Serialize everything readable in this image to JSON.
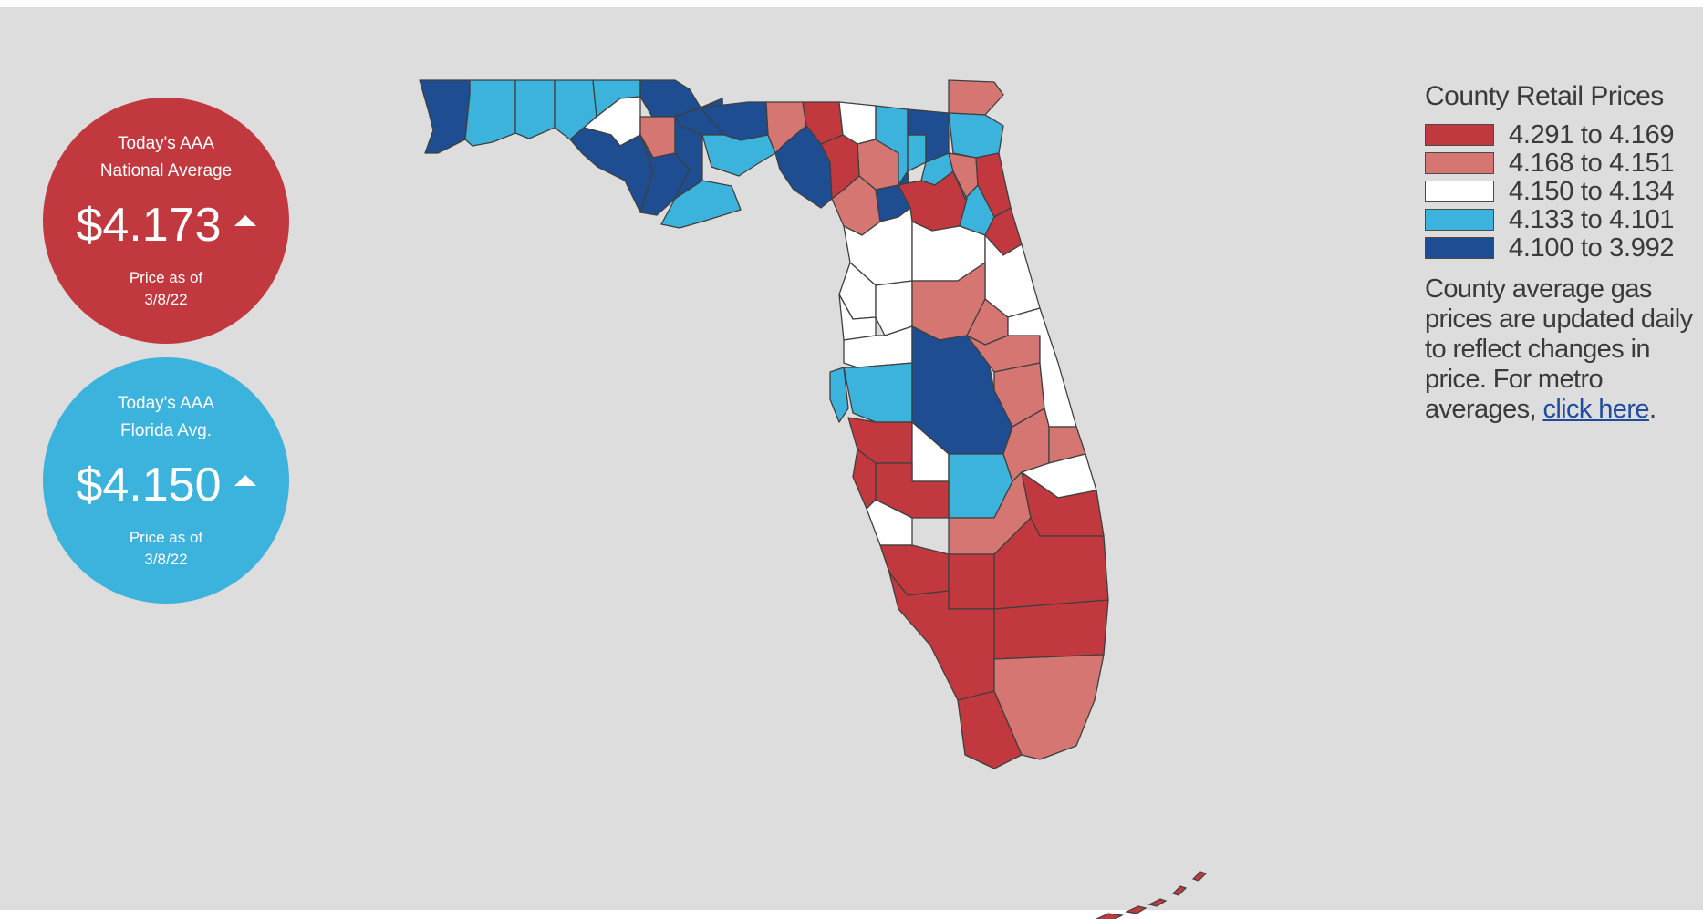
{
  "national": {
    "label_line1": "Today's AAA",
    "label_line2": "National Average",
    "price": "$4.173",
    "trend": "up",
    "asof_label": "Price as of",
    "date": "3/8/22",
    "color": "#c1393e"
  },
  "florida": {
    "label_line1": "Today's AAA",
    "label_line2": "Florida Avg.",
    "price": "$4.150",
    "trend": "up",
    "asof_label": "Price as of",
    "date": "3/8/22",
    "color": "#3bb3dc"
  },
  "legend": {
    "title": "County Retail Prices",
    "bins": [
      {
        "range": "4.291 to 4.169",
        "color": "#c1393e"
      },
      {
        "range": "4.168 to 4.151",
        "color": "#d57673"
      },
      {
        "range": "4.150 to 4.134",
        "color": "#ffffff"
      },
      {
        "range": "4.133 to 4.101",
        "color": "#3bb3dc"
      },
      {
        "range": "4.100 to 3.992",
        "color": "#1e4d91"
      }
    ],
    "note_text": "County average gas prices are updated daily to reflect changes in price. For metro averages,",
    "link_text": "click here",
    "note_end": "."
  },
  "map": {
    "region": "Florida",
    "counties": [
      {
        "name": "Escambia",
        "bin": 4
      },
      {
        "name": "Santa Rosa",
        "bin": 3
      },
      {
        "name": "Okaloosa",
        "bin": 3
      },
      {
        "name": "Walton",
        "bin": 3
      },
      {
        "name": "Holmes",
        "bin": 3
      },
      {
        "name": "Washington",
        "bin": 2
      },
      {
        "name": "Bay",
        "bin": 4
      },
      {
        "name": "Jackson",
        "bin": 4
      },
      {
        "name": "Calhoun",
        "bin": 1
      },
      {
        "name": "Gulf",
        "bin": 4
      },
      {
        "name": "Gadsden",
        "bin": 4
      },
      {
        "name": "Liberty",
        "bin": 4
      },
      {
        "name": "Franklin",
        "bin": 3
      },
      {
        "name": "Leon",
        "bin": 4
      },
      {
        "name": "Wakulla",
        "bin": 3
      },
      {
        "name": "Jefferson",
        "bin": 1
      },
      {
        "name": "Madison",
        "bin": 0
      },
      {
        "name": "Taylor",
        "bin": 4
      },
      {
        "name": "Hamilton",
        "bin": 2
      },
      {
        "name": "Suwannee",
        "bin": 1
      },
      {
        "name": "Lafayette",
        "bin": 0
      },
      {
        "name": "Dixie",
        "bin": 1
      },
      {
        "name": "Columbia",
        "bin": 3
      },
      {
        "name": "Gilchrist",
        "bin": 4
      },
      {
        "name": "Union",
        "bin": 3
      },
      {
        "name": "Baker",
        "bin": 4
      },
      {
        "name": "Bradford",
        "bin": 3
      },
      {
        "name": "Alachua",
        "bin": 0
      },
      {
        "name": "Nassau",
        "bin": 1
      },
      {
        "name": "Duval",
        "bin": 3
      },
      {
        "name": "Clay",
        "bin": 1
      },
      {
        "name": "St. Johns",
        "bin": 0
      },
      {
        "name": "Putnam",
        "bin": 3
      },
      {
        "name": "Flagler",
        "bin": 0
      },
      {
        "name": "Levy",
        "bin": 2
      },
      {
        "name": "Marion",
        "bin": 2
      },
      {
        "name": "Volusia",
        "bin": 2
      },
      {
        "name": "Citrus",
        "bin": 2
      },
      {
        "name": "Sumter",
        "bin": 2
      },
      {
        "name": "Lake",
        "bin": 1
      },
      {
        "name": "Seminole",
        "bin": 1
      },
      {
        "name": "Hernando",
        "bin": 2
      },
      {
        "name": "Pasco",
        "bin": 2
      },
      {
        "name": "Pinellas",
        "bin": 3
      },
      {
        "name": "Hillsborough",
        "bin": 3
      },
      {
        "name": "Polk",
        "bin": 4
      },
      {
        "name": "Orange",
        "bin": 1
      },
      {
        "name": "Osceola",
        "bin": 1
      },
      {
        "name": "Brevard",
        "bin": 2
      },
      {
        "name": "Manatee",
        "bin": 0
      },
      {
        "name": "Hardee",
        "bin": 2
      },
      {
        "name": "Highlands",
        "bin": 3
      },
      {
        "name": "Okeechobee",
        "bin": 1
      },
      {
        "name": "Indian River",
        "bin": 1
      },
      {
        "name": "St. Lucie",
        "bin": 2
      },
      {
        "name": "Sarasota",
        "bin": 0
      },
      {
        "name": "DeSoto",
        "bin": 0
      },
      {
        "name": "Charlotte",
        "bin": 2
      },
      {
        "name": "Glades",
        "bin": 1
      },
      {
        "name": "Martin",
        "bin": 0
      },
      {
        "name": "Lee",
        "bin": 0
      },
      {
        "name": "Hendry",
        "bin": 0
      },
      {
        "name": "Palm Beach",
        "bin": 0
      },
      {
        "name": "Collier",
        "bin": 0
      },
      {
        "name": "Broward",
        "bin": 0
      },
      {
        "name": "Miami-Dade",
        "bin": 1
      },
      {
        "name": "Monroe",
        "bin": 0
      }
    ]
  }
}
